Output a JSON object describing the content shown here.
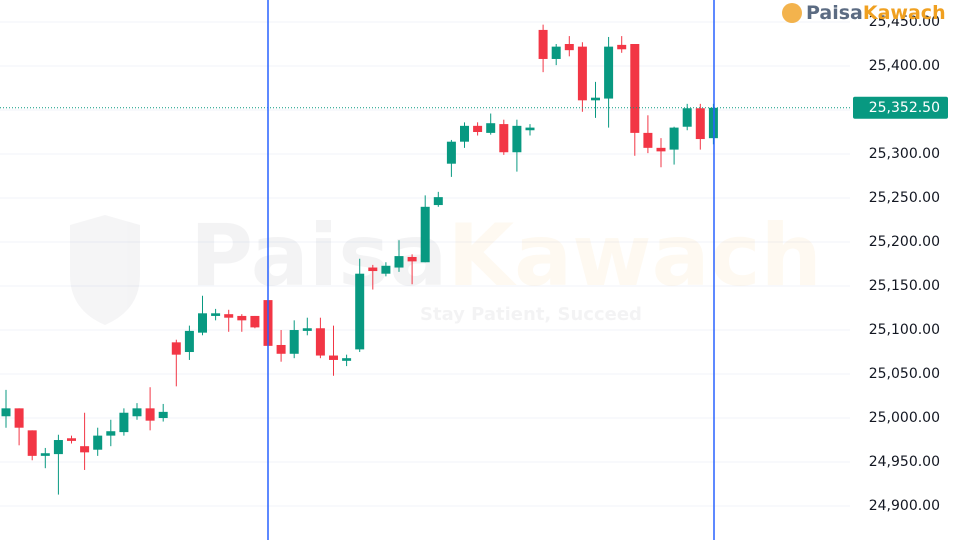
{
  "chart_data": {
    "type": "candlestick",
    "logo_parts": [
      "Paisa",
      "Kawach"
    ],
    "watermark_parts": [
      "Paisa",
      "Kawach"
    ],
    "watermark_tagline": "Stay Patient, Succeed",
    "up_color": "#089981",
    "down_color": "#f23645",
    "last_price": {
      "value": 25352.5,
      "label": "25,352.50"
    },
    "ylim": [
      24861.4,
      25475.0
    ],
    "yticks": [
      {
        "value": 24900,
        "label": "24,900.00"
      },
      {
        "value": 24950,
        "label": "24,950.00"
      },
      {
        "value": 25000,
        "label": "25,000.00"
      },
      {
        "value": 25050,
        "label": "25,050.00"
      },
      {
        "value": 25100,
        "label": "25,100.00"
      },
      {
        "value": 25150,
        "label": "25,150.00"
      },
      {
        "value": 25200,
        "label": "25,200.00"
      },
      {
        "value": 25250,
        "label": "25,250.00"
      },
      {
        "value": 25300,
        "label": "25,300.00"
      },
      {
        "value": 25350,
        "label": "25,350.00"
      },
      {
        "value": 25400,
        "label": "25,400.00"
      },
      {
        "value": 25450,
        "label": "25,450.00"
      }
    ],
    "grid": true,
    "open": [
      25002,
      25011,
      24986,
      24957,
      24959,
      24977,
      24968,
      24964,
      24980,
      24984,
      25002,
      25011,
      25000,
      25086,
      25075,
      25097,
      25116,
      25118,
      25116,
      25116,
      25134,
      25083,
      25073,
      25099,
      25102,
      25071,
      25065,
      25078,
      25171,
      25164,
      25171,
      25183,
      25177,
      25242,
      25289,
      25314,
      25332,
      25324,
      25334,
      25302,
      25327,
      25441,
      25408,
      25425,
      25422,
      25361,
      25363,
      25424,
      25425,
      25324,
      25307,
      25305,
      25331,
      25352,
      25318
    ],
    "high": [
      25032,
      25011,
      24986,
      24966,
      24981,
      24980,
      25006,
      24989,
      24998,
      25011,
      25017,
      25035,
      25016,
      25089,
      25105,
      25139,
      25124,
      25123,
      25118,
      25116,
      25134,
      25100,
      25111,
      25114,
      25114,
      25105,
      25072,
      25181,
      25174,
      25177,
      25202,
      25186,
      25253,
      25257,
      25316,
      25336,
      25336,
      25346,
      25339,
      25339,
      25334,
      25447,
      25425,
      25434,
      25427,
      25382,
      25433,
      25434,
      25425,
      25344,
      25318,
      25331,
      25357,
      25357,
      25357
    ],
    "low": [
      24989,
      24969,
      24952,
      24943,
      24913,
      24971,
      24941,
      24957,
      24968,
      24980,
      24998,
      24986,
      24996,
      25036,
      25066,
      25094,
      25111,
      25098,
      25098,
      25102,
      25077,
      25064,
      25068,
      25094,
      25068,
      25048,
      25059,
      25075,
      25146,
      25161,
      25166,
      25152,
      25177,
      25240,
      25274,
      25307,
      25321,
      25322,
      25299,
      25280,
      25321,
      25393,
      25401,
      25411,
      25348,
      25341,
      25330,
      25415,
      25298,
      25301,
      25285,
      25288,
      25327,
      25305,
      25311
    ],
    "close": [
      25011,
      24989,
      24957,
      24960,
      24975,
      24974,
      24961,
      24980,
      24985,
      25006,
      25011,
      24997,
      25007,
      25072,
      25099,
      25119,
      25119,
      25114,
      25111,
      25103,
      25082,
      25073,
      25100,
      25102,
      25071,
      25066,
      25068,
      25164,
      25167,
      25173,
      25184,
      25178,
      25240,
      25251,
      25314,
      25332,
      25325,
      25335,
      25302,
      25332,
      25330,
      25408,
      25422,
      25418,
      25361,
      25364,
      25422,
      25419,
      25324,
      25307,
      25303,
      25330,
      25352,
      25317,
      25352.5
    ]
  }
}
